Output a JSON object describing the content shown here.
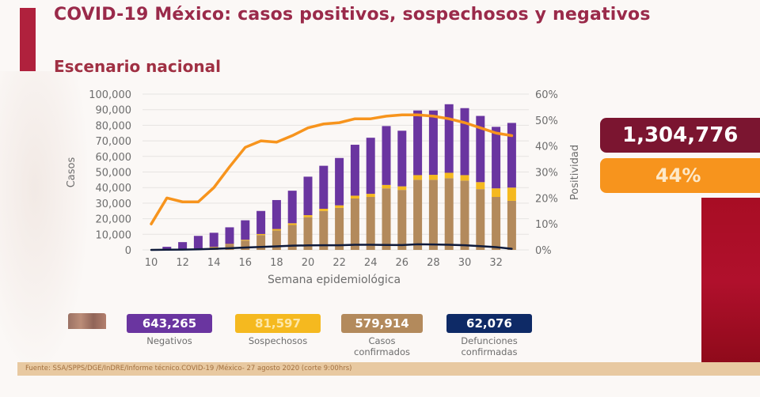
{
  "header": {
    "title": "COVID-19 México: casos positivos, sospechosos y negativos",
    "subtitle": "Escenario nacional"
  },
  "kpis": {
    "total": "1,304,776",
    "positivity": "44%"
  },
  "stats": [
    {
      "value": "643,265",
      "label": "Negativos",
      "color": "#6a35a0"
    },
    {
      "value": "81,597",
      "label": "Sospechosos",
      "color": "#f5b91f"
    },
    {
      "value": "579,914",
      "label": "Casos confirmados",
      "color": "#b38a5c"
    },
    {
      "value": "62,076",
      "label": "Defunciones confirmadas",
      "color": "#0e2a66"
    }
  ],
  "footer": "Fuente: SSA/SPPS/DGE/InDRE/Informe técnico.COVID-19 /México- 27 agosto 2020 (corte 9:00hrs)",
  "chart_data": {
    "type": "bar",
    "stacked": true,
    "xlabel": "Semana epidemiológica",
    "ylabel": "Casos",
    "y2label": "Positividad",
    "ylim": [
      0,
      100000
    ],
    "y2lim": [
      0,
      60
    ],
    "yticks": [
      "0",
      "10,000",
      "20,000",
      "30,000",
      "40,000",
      "50,000",
      "60,000",
      "70,000",
      "80,000",
      "90,000",
      "100,000"
    ],
    "y2ticks": [
      "0%",
      "10%",
      "20%",
      "30%",
      "40%",
      "50%",
      "60%"
    ],
    "xticks": [
      10,
      12,
      14,
      16,
      18,
      20,
      22,
      24,
      26,
      28,
      30,
      32
    ],
    "grid": true,
    "x": [
      10,
      11,
      12,
      13,
      14,
      15,
      16,
      17,
      18,
      19,
      20,
      21,
      22,
      23,
      24,
      25,
      26,
      27,
      28,
      29,
      30,
      31,
      32,
      33
    ],
    "series": [
      {
        "name": "Casos confirmados",
        "color": "#b38a5c",
        "values": [
          0,
          300,
          500,
          800,
          1800,
          3500,
          6000,
          9500,
          12500,
          16000,
          21000,
          25000,
          27000,
          33000,
          34000,
          39500,
          38500,
          45000,
          45000,
          46000,
          44500,
          39000,
          34000,
          31500
        ]
      },
      {
        "name": "Sospechosos",
        "color": "#f5b91f",
        "values": [
          0,
          50,
          100,
          100,
          200,
          300,
          500,
          700,
          900,
          1100,
          1300,
          1400,
          1600,
          1800,
          2000,
          2200,
          2300,
          3000,
          3200,
          3500,
          3500,
          4500,
          5500,
          8500
        ]
      },
      {
        "name": "Negativos",
        "color": "#6a35a0",
        "values": [
          0,
          1650,
          4400,
          8100,
          9000,
          10700,
          12500,
          14800,
          18600,
          20900,
          24700,
          27600,
          30400,
          32700,
          36000,
          37800,
          35700,
          41500,
          41300,
          44000,
          43000,
          42500,
          39500,
          41500
        ]
      }
    ],
    "lines": [
      {
        "name": "Positividad",
        "axis": "y2",
        "color": "#f7941d",
        "values": [
          10,
          20,
          18.5,
          18.5,
          24,
          32,
          39.5,
          42,
          41.5,
          44,
          47,
          48.5,
          49,
          50.5,
          50.5,
          51.5,
          52,
          52,
          51.5,
          50.5,
          49,
          47,
          45,
          44
        ]
      },
      {
        "name": "Defunciones",
        "axis": "y",
        "color": "#0e1a3a",
        "values": [
          0,
          100,
          200,
          400,
          700,
          1100,
          1500,
          1900,
          2300,
          2700,
          2900,
          3000,
          3000,
          3300,
          3300,
          3200,
          3100,
          3600,
          3500,
          3300,
          3000,
          2400,
          1800,
          700
        ]
      }
    ]
  }
}
